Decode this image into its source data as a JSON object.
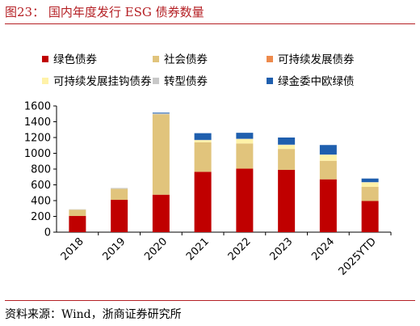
{
  "title": "图23：  国内年度发行 ESG 债券数量",
  "source": "资料来源：Wind，浙商证券研究所",
  "chart_data": {
    "type": "bar",
    "stacked": true,
    "categories": [
      "2018",
      "2019",
      "2020",
      "2021",
      "2022",
      "2023",
      "2024",
      "2025YTD"
    ],
    "ylim": [
      0,
      1600
    ],
    "yticks": [
      0,
      200,
      400,
      600,
      800,
      1000,
      1200,
      1400,
      1600
    ],
    "grid": false,
    "legend_position": "top",
    "series": [
      {
        "name": "绿色债券",
        "color": "#c00000",
        "values": [
          205,
          410,
          475,
          765,
          805,
          790,
          670,
          395
        ]
      },
      {
        "name": "社会债券",
        "color": "#e1c47c",
        "values": [
          80,
          140,
          1020,
          375,
          320,
          265,
          235,
          180
        ]
      },
      {
        "name": "可持续发展债券",
        "color": "#ee8a4c",
        "values": [
          0,
          0,
          0,
          0,
          0,
          0,
          0,
          0
        ]
      },
      {
        "name": "可持续发展挂钩债券",
        "color": "#fff2a8",
        "values": [
          0,
          0,
          0,
          25,
          55,
          50,
          75,
          55
        ]
      },
      {
        "name": "转型债券",
        "color": "#c8c8c8",
        "values": [
          5,
          10,
          10,
          5,
          5,
          5,
          5,
          5
        ]
      },
      {
        "name": "绿金委中欧绿债",
        "color": "#1f5fae",
        "values": [
          0,
          0,
          10,
          85,
          75,
          90,
          120,
          45
        ]
      }
    ]
  }
}
